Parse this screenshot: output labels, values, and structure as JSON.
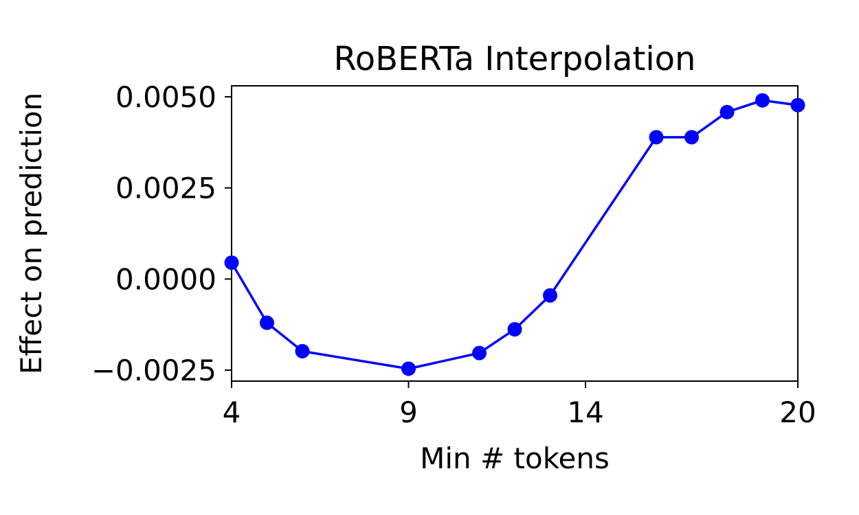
{
  "chart_data": {
    "type": "line",
    "title": "RoBERTa Interpolation",
    "xlabel": "Min # tokens",
    "ylabel": "Effect on prediction",
    "xlim": [
      4,
      20
    ],
    "ylim": [
      -0.0028,
      0.0053
    ],
    "xticks": [
      4,
      9,
      14,
      20
    ],
    "xtick_labels": [
      "4",
      "9",
      "14",
      "20"
    ],
    "yticks": [
      -0.0025,
      0.0,
      0.0025,
      0.005
    ],
    "ytick_labels": [
      "−0.0025",
      "0.0000",
      "0.0025",
      "0.0050"
    ],
    "grid": false,
    "series": [
      {
        "color": "#0000ff",
        "marker": "circle",
        "x": [
          4,
          5,
          6,
          9,
          11,
          12,
          13,
          16,
          17,
          18,
          19,
          20
        ],
        "y": [
          0.00045,
          -0.0012,
          -0.00198,
          -0.00246,
          -0.00203,
          -0.00138,
          -0.00045,
          0.00389,
          0.00389,
          0.00458,
          0.0049,
          0.00477
        ]
      }
    ]
  }
}
